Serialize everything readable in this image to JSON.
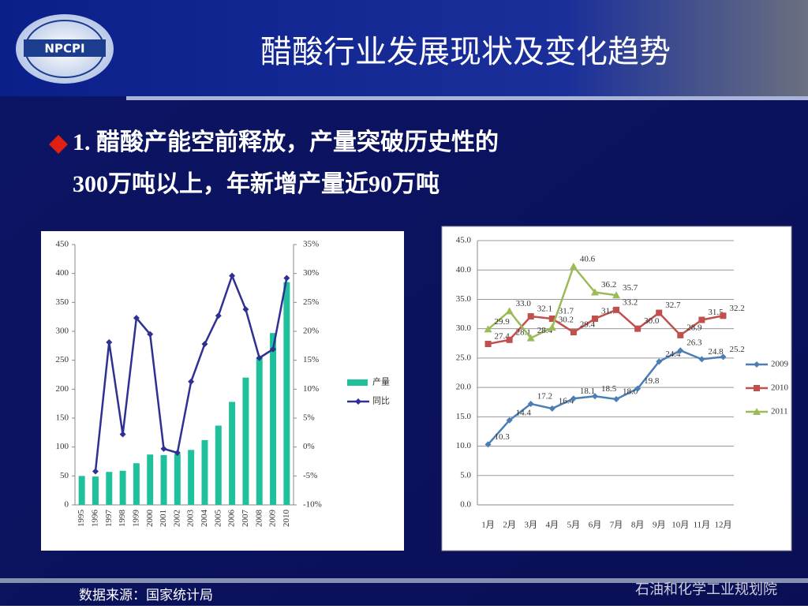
{
  "header": {
    "title": "醋酸行业发展现状及变化趋势",
    "logo": "NPCPI"
  },
  "bullet": {
    "lines": [
      "1.  醋酸产能空前释放，产量突破历史性的",
      "300万吨以上，年新增产量近90万吨"
    ]
  },
  "footer": {
    "source": "数据来源：国家统计局",
    "org": "石油和化学工业规划院"
  },
  "chart_data": [
    {
      "type": "bar",
      "categories": [
        "1995",
        "1996",
        "1997",
        "1998",
        "1999",
        "2000",
        "2001",
        "2002",
        "2003",
        "2004",
        "2005",
        "2006",
        "2007",
        "2008",
        "2009",
        "2010"
      ],
      "series": [
        {
          "name": "产量",
          "color": "#1fc09c",
          "values": [
            50,
            49,
            57,
            59,
            72,
            87,
            86,
            88,
            95,
            112,
            137,
            178,
            220,
            255,
            297,
            385
          ]
        },
        {
          "name": "同比",
          "color": "#2e3192",
          "axis": "y2",
          "values": [
            null,
            -4.2,
            18.1,
            2.2,
            22.3,
            19.5,
            -0.3,
            -1,
            11.3,
            17.8,
            22.7,
            29.6,
            23.8,
            15.4,
            16.9,
            29.2
          ]
        }
      ],
      "ylim": [
        0,
        450
      ],
      "yticks": [
        0,
        50,
        100,
        150,
        200,
        250,
        300,
        350,
        400,
        450
      ],
      "y2lim": [
        -10,
        35
      ],
      "y2ticks": [
        {
          "value": -10,
          "label": "-10%"
        },
        {
          "value": -5,
          "label": "-5%"
        },
        {
          "value": 0,
          "label": "0%"
        },
        {
          "value": 5,
          "label": "5%"
        },
        {
          "value": 10,
          "label": "10%"
        },
        {
          "value": 15,
          "label": "15%"
        },
        {
          "value": 20,
          "label": "20%"
        },
        {
          "value": 25,
          "label": "25%"
        },
        {
          "value": 30,
          "label": "30%"
        },
        {
          "value": 35,
          "label": "35%"
        }
      ],
      "grid": false,
      "legend": "right"
    },
    {
      "type": "line",
      "categories": [
        "1月",
        "2月",
        "3月",
        "4月",
        "5月",
        "6月",
        "7月",
        "8月",
        "9月",
        "10月",
        "11月",
        "12月"
      ],
      "series": [
        {
          "name": "2009",
          "color": "#4a7eb5",
          "values": [
            10.3,
            14.4,
            17.2,
            16.4,
            18.1,
            18.5,
            18.0,
            19.8,
            24.4,
            26.3,
            24.8,
            25.2
          ],
          "value_labels": [
            "10.3",
            "14.4",
            "17.2",
            "16.4",
            "18.1",
            "18.5",
            "18.0",
            "19.8",
            "24.4",
            "26.3",
            "24.8",
            "25.2"
          ]
        },
        {
          "name": "2010",
          "color": "#c0504d",
          "values": [
            27.4,
            28.1,
            32.1,
            31.7,
            29.4,
            31.7,
            33.2,
            30.0,
            32.7,
            28.9,
            31.5,
            32.2
          ],
          "value_labels": [
            "27.4",
            "28.1",
            "32.1",
            "31.7",
            "29.4",
            "31.7",
            "33.2",
            "30.0",
            "32.7",
            "28.9",
            "31.5",
            "32.2"
          ]
        },
        {
          "name": "2011",
          "color": "#9bbb59",
          "values": [
            29.9,
            33.0,
            28.4,
            30.2,
            40.6,
            36.2,
            35.7,
            null,
            null,
            null,
            null,
            null
          ],
          "value_labels": [
            "29.9",
            "33.0",
            "28.4",
            "30.2",
            "40.6",
            "36.2",
            "35.7",
            null,
            null,
            null,
            null,
            null
          ]
        }
      ],
      "ylim": [
        0,
        45
      ],
      "yticks": [
        {
          "value": 0,
          "label": "0.0"
        },
        {
          "value": 5,
          "label": "5.0"
        },
        {
          "value": 10,
          "label": "10.0"
        },
        {
          "value": 15,
          "label": "15.0"
        },
        {
          "value": 20,
          "label": "20.0"
        },
        {
          "value": 25,
          "label": "25.0"
        },
        {
          "value": 30,
          "label": "30.0"
        },
        {
          "value": 35,
          "label": "35.0"
        },
        {
          "value": 40,
          "label": "40.0"
        },
        {
          "value": 45,
          "label": "45.0"
        }
      ],
      "grid": true,
      "legend": "right"
    }
  ]
}
